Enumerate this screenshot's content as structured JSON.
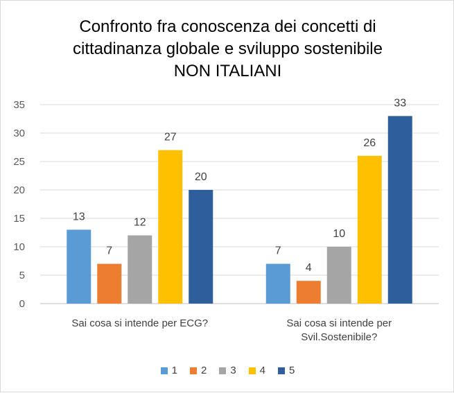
{
  "chart_data": {
    "type": "bar",
    "title_lines": [
      "Confronto fra conoscenza dei concetti di",
      "cittadinanza globale e sviluppo sostenibile",
      "NON ITALIANI"
    ],
    "categories": [
      [
        "Sai cosa si intende per ECG?"
      ],
      [
        "Sai  cosa si intende  per",
        "Svil.Sostenibile?"
      ]
    ],
    "series": [
      {
        "name": "1",
        "color": "#5b9bd5",
        "values": [
          13,
          7
        ]
      },
      {
        "name": "2",
        "color": "#ed7d31",
        "values": [
          7,
          4
        ]
      },
      {
        "name": "3",
        "color": "#a5a5a5",
        "values": [
          12,
          10
        ]
      },
      {
        "name": "4",
        "color": "#ffc000",
        "values": [
          27,
          26
        ]
      },
      {
        "name": "5",
        "color": "#2e5e9b",
        "values": [
          20,
          33
        ]
      }
    ],
    "ylim": [
      0,
      35
    ],
    "yticks": [
      0,
      5,
      10,
      15,
      20,
      25,
      30,
      35
    ],
    "grid": true,
    "legend_position": "bottom",
    "xlabel": "",
    "ylabel": ""
  }
}
